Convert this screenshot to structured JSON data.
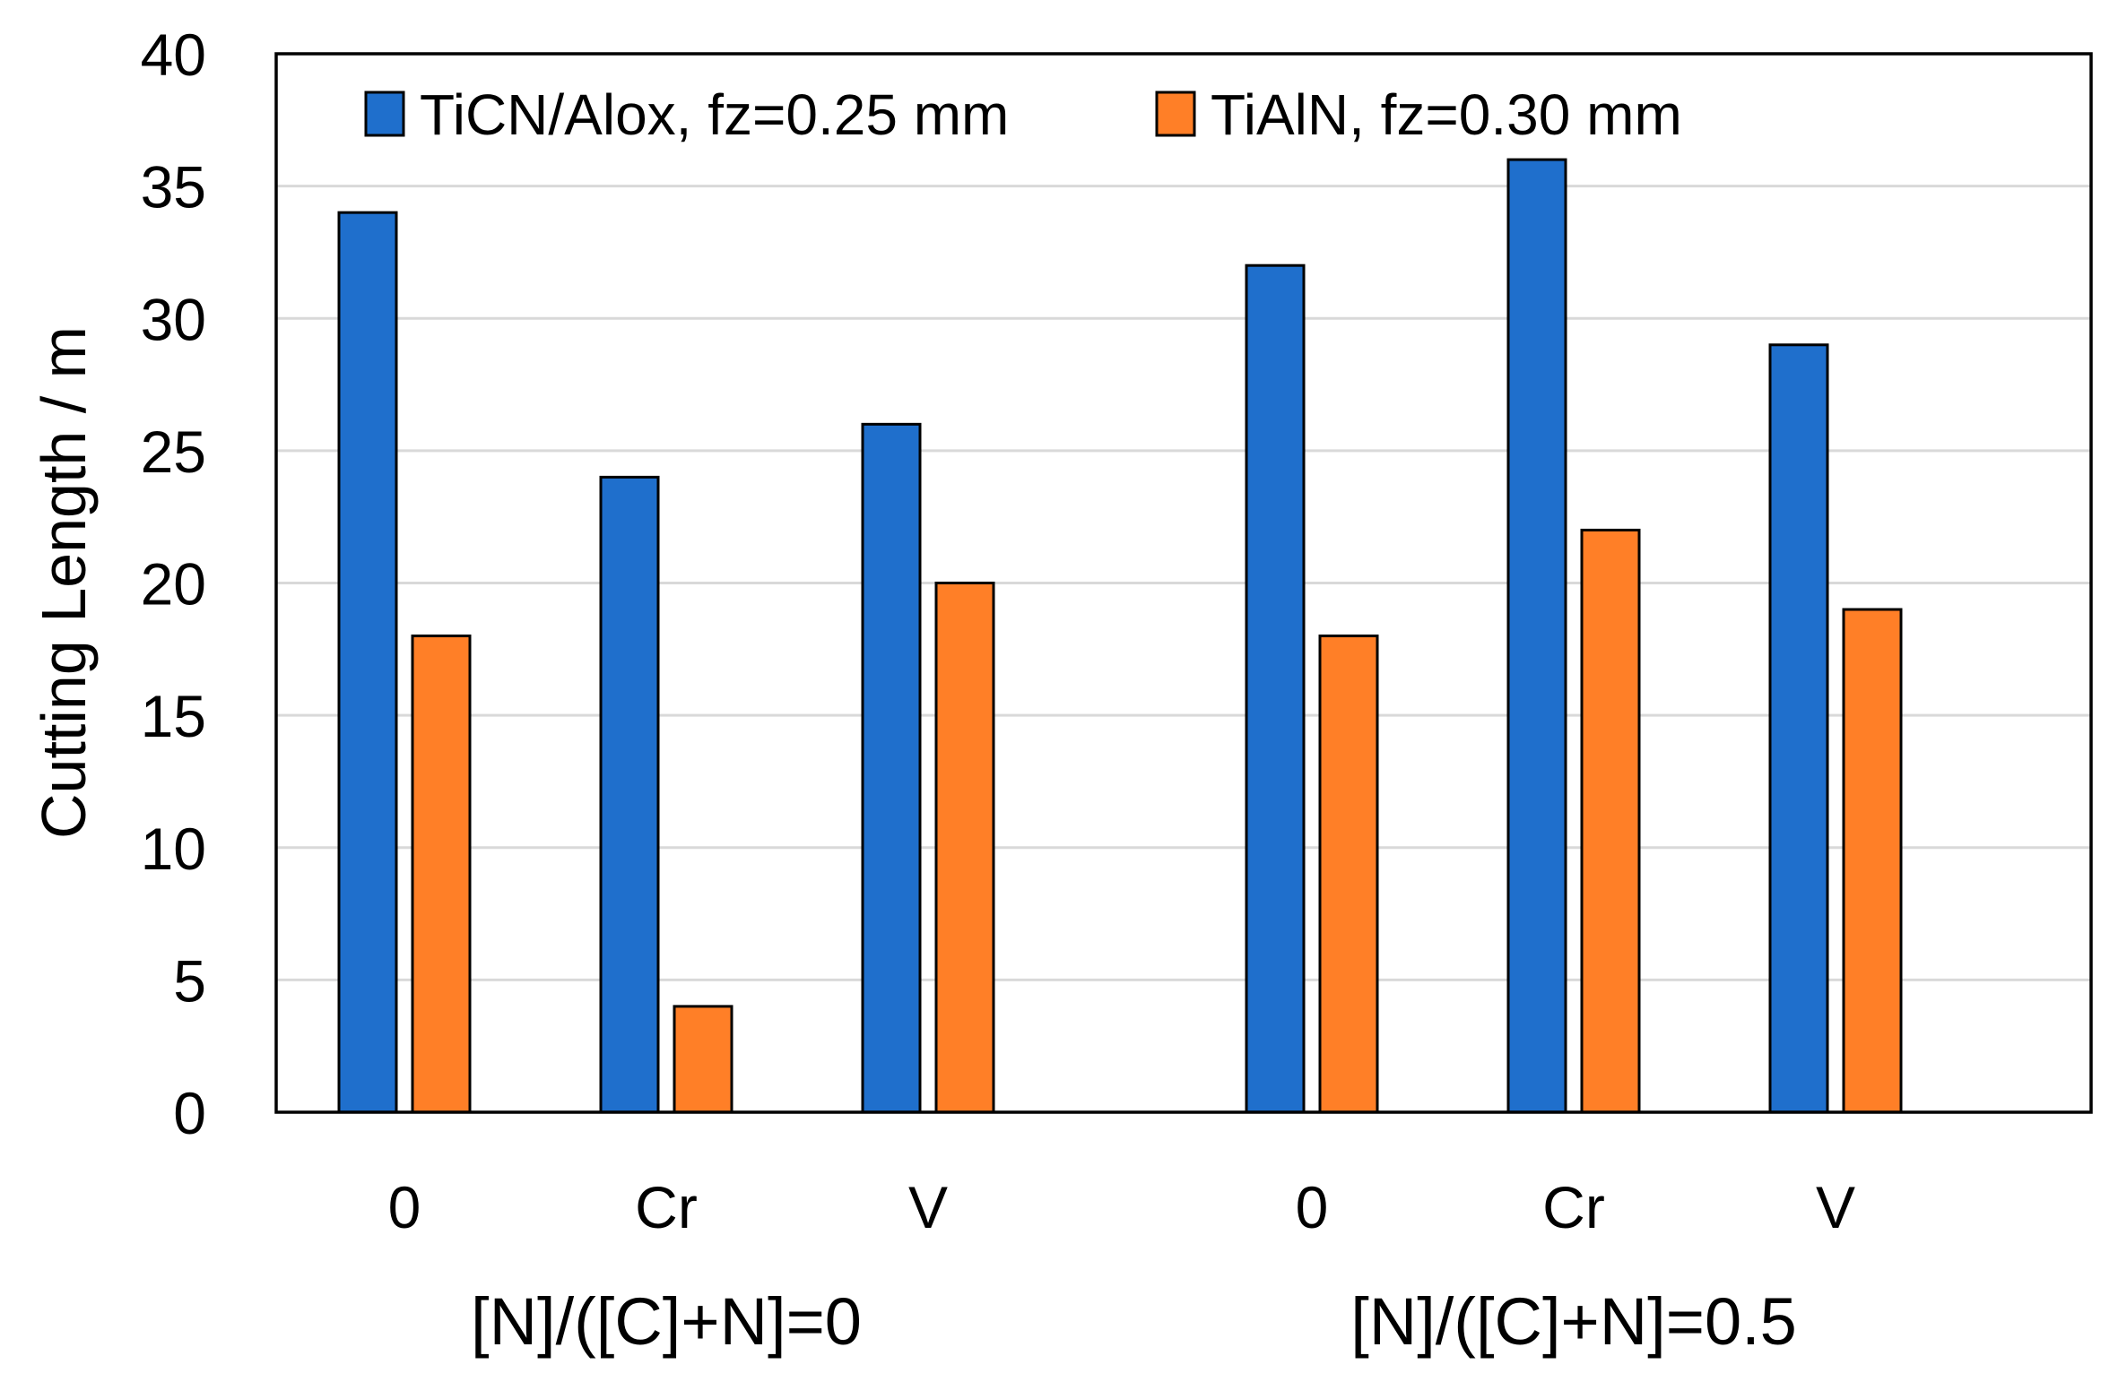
{
  "colors": {
    "series_1": "#1f6fcc",
    "series_2": "#ff7f27",
    "gridline": "#d9d9d9",
    "frame": "#000000",
    "bar_outline": "#000000"
  },
  "chart_data": {
    "type": "bar",
    "title": "",
    "xlabel": "",
    "ylabel": "Cutting Length / m",
    "ylim": [
      0,
      40
    ],
    "yticks": [
      0,
      5,
      10,
      15,
      20,
      25,
      30,
      35,
      40
    ],
    "grid": true,
    "legend_position": "top-left",
    "groups": [
      {
        "label": "[N]/([C]+N]=0",
        "categories": [
          "0",
          "Cr",
          "V"
        ]
      },
      {
        "label": "[N]/([C]+N]=0.5",
        "categories": [
          "0",
          "Cr",
          "V"
        ]
      }
    ],
    "series": [
      {
        "name": "TiCN/Alox, fz=0.25 mm",
        "values": [
          34,
          24,
          26,
          32,
          36,
          29
        ]
      },
      {
        "name": "TiAlN, fz=0.30 mm",
        "values": [
          18,
          4,
          20,
          18,
          22,
          19
        ]
      }
    ]
  }
}
